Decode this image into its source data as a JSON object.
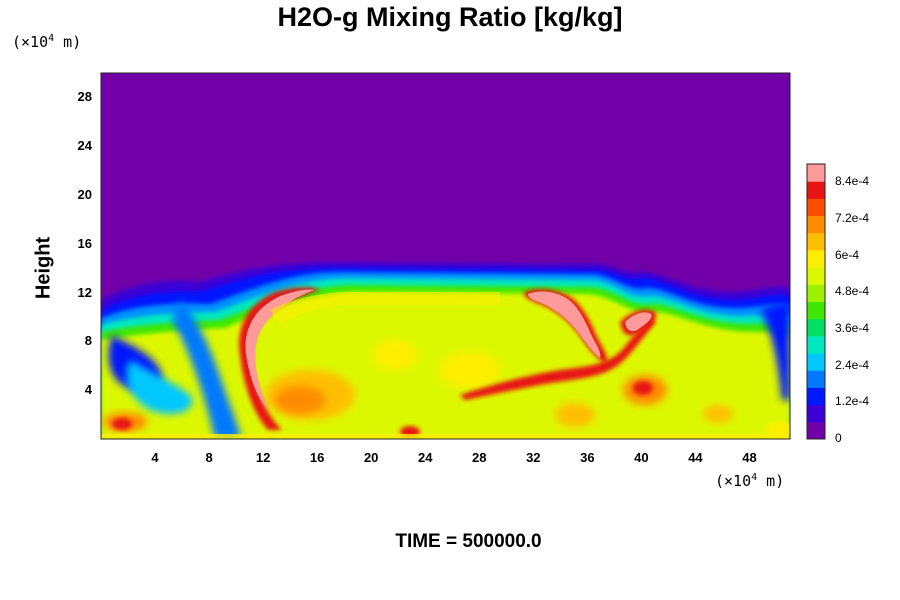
{
  "chart_data": {
    "type": "heatmap",
    "title": "H2O-g Mixing Ratio [kg/kg]",
    "ylabel": "Height",
    "xlabel": "",
    "x_unit": "(×10⁴ m)",
    "y_unit": "(×10⁴ m)",
    "x_unit_base": "(×10",
    "x_unit_exp": "4",
    "x_unit_tail": " m)",
    "y_unit_base": "(×10",
    "y_unit_exp": "4",
    "y_unit_tail": " m)",
    "xlim": [
      0,
      51
    ],
    "ylim": [
      0,
      30
    ],
    "x_ticks": [
      "4",
      "8",
      "12",
      "16",
      "20",
      "24",
      "28",
      "32",
      "36",
      "40",
      "44",
      "48"
    ],
    "y_ticks": [
      "4",
      "8",
      "12",
      "16",
      "20",
      "24",
      "28"
    ],
    "colorbar": {
      "min": 0,
      "max": 0.0009,
      "tick_labels": [
        "8.4e-4",
        "7.2e-4",
        "6e-4",
        "4.8e-4",
        "3.6e-4",
        "2.4e-4",
        "1.2e-4",
        "0"
      ],
      "tick_values": [
        0.00084,
        0.00072,
        0.0006,
        0.00048,
        0.00036,
        0.00024,
        0.00012,
        0
      ],
      "colors": [
        "#7200a8",
        "#3a00d6",
        "#0018ff",
        "#0078ff",
        "#00c8ff",
        "#00e8c0",
        "#00e060",
        "#40e800",
        "#9cf000",
        "#dcf800",
        "#ffee00",
        "#ffbf00",
        "#ff8c00",
        "#ff4d00",
        "#e81414",
        "#ff9a9a"
      ]
    },
    "field_description": {
      "top_region_value": 0,
      "cloud_top_height_approx": 13,
      "max_value_regions": [
        [
          10.5,
          8
        ],
        [
          33,
          10
        ],
        [
          39,
          9
        ]
      ]
    },
    "grid": false
  },
  "footer": {
    "text": "TIME = 500000.0"
  }
}
